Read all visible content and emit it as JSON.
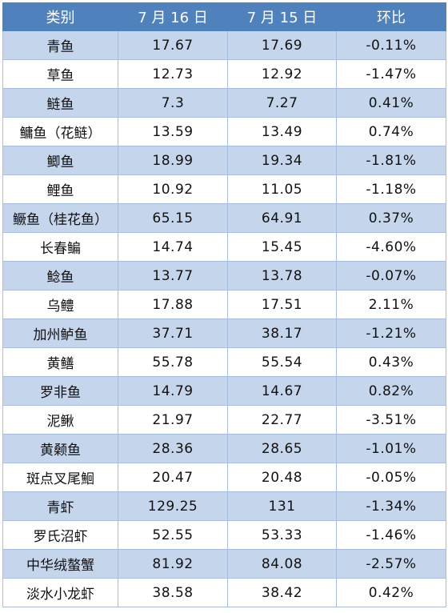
{
  "table": {
    "headers": [
      "类别",
      "7 月 16 日",
      "7 月 15 日",
      "环比"
    ],
    "rows": [
      {
        "category": "青鱼",
        "jul16": "17.67",
        "jul15": "17.69",
        "change": "-0.11%"
      },
      {
        "category": "草鱼",
        "jul16": "12.73",
        "jul15": "12.92",
        "change": "-1.47%"
      },
      {
        "category": "鲢鱼",
        "jul16": "7.3",
        "jul15": "7.27",
        "change": "0.41%"
      },
      {
        "category": "鳙鱼（花鲢）",
        "jul16": "13.59",
        "jul15": "13.49",
        "change": "0.74%"
      },
      {
        "category": "鲫鱼",
        "jul16": "18.99",
        "jul15": "19.34",
        "change": "-1.81%"
      },
      {
        "category": "鲤鱼",
        "jul16": "10.92",
        "jul15": "11.05",
        "change": "-1.18%"
      },
      {
        "category": "鳜鱼（桂花鱼）",
        "jul16": "65.15",
        "jul15": "64.91",
        "change": "0.37%"
      },
      {
        "category": "长春鳊",
        "jul16": "14.74",
        "jul15": "15.45",
        "change": "-4.60%"
      },
      {
        "category": "鲶鱼",
        "jul16": "13.77",
        "jul15": "13.78",
        "change": "-0.07%"
      },
      {
        "category": "乌鳢",
        "jul16": "17.88",
        "jul15": "17.51",
        "change": "2.11%"
      },
      {
        "category": "加州鲈鱼",
        "jul16": "37.71",
        "jul15": "38.17",
        "change": "-1.21%"
      },
      {
        "category": "黄鳝",
        "jul16": "55.78",
        "jul15": "55.54",
        "change": "0.43%"
      },
      {
        "category": "罗非鱼",
        "jul16": "14.79",
        "jul15": "14.67",
        "change": "0.82%"
      },
      {
        "category": "泥鳅",
        "jul16": "21.97",
        "jul15": "22.77",
        "change": "-3.51%"
      },
      {
        "category": "黄颡鱼",
        "jul16": "28.36",
        "jul15": "28.65",
        "change": "-1.01%"
      },
      {
        "category": "斑点叉尾鮰",
        "jul16": "20.47",
        "jul15": "20.48",
        "change": "-0.05%"
      },
      {
        "category": "青虾",
        "jul16": "129.25",
        "jul15": "131",
        "change": "-1.34%"
      },
      {
        "category": "罗氏沼虾",
        "jul16": "52.55",
        "jul15": "53.33",
        "change": "-1.46%"
      },
      {
        "category": "中华绒螯蟹",
        "jul16": "81.92",
        "jul15": "84.08",
        "change": "-2.57%"
      },
      {
        "category": "淡水小龙虾",
        "jul16": "38.58",
        "jul15": "38.42",
        "change": "0.42%"
      }
    ]
  },
  "colors": {
    "header_bg": "#4f81bd",
    "band_bg": "#c5d5ec",
    "border": "#a7bde0"
  }
}
